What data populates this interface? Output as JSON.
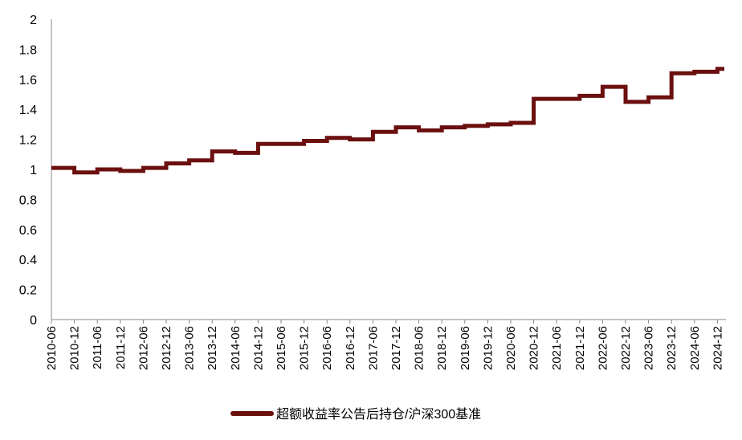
{
  "chart_data": {
    "type": "line",
    "title": "",
    "xlabel": "",
    "ylabel": "",
    "ylim": [
      0,
      2
    ],
    "y_ticks": [
      "0",
      "0.2",
      "0.4",
      "0.6",
      "0.8",
      "1",
      "1.2",
      "1.4",
      "1.6",
      "1.8",
      "2"
    ],
    "x_ticks": [
      "2010-06",
      "2010-12",
      "2011-06",
      "2011-12",
      "2012-06",
      "2012-12",
      "2013-06",
      "2013-12",
      "2014-06",
      "2014-12",
      "2015-06",
      "2015-12",
      "2016-06",
      "2016-12",
      "2017-06",
      "2017-12",
      "2018-06",
      "2018-12",
      "2019-06",
      "2019-12",
      "2020-06",
      "2020-12",
      "2021-06",
      "2021-12",
      "2022-06",
      "2022-12",
      "2023-06",
      "2023-12",
      "2024-06",
      "2024-12"
    ],
    "grid": false,
    "legend_position": "bottom",
    "series": [
      {
        "name": "超额收益率公告后持仓/沪深300基准",
        "color": "#6b0f0f",
        "x": [
          "2010-06",
          "2010-12",
          "2010-12",
          "2011-06",
          "2011-06",
          "2011-12",
          "2011-12",
          "2012-06",
          "2012-06",
          "2012-12",
          "2012-12",
          "2013-06",
          "2013-06",
          "2013-12",
          "2013-12",
          "2014-06",
          "2014-06",
          "2014-12",
          "2014-12",
          "2015-06",
          "2015-06",
          "2015-12",
          "2015-12",
          "2016-06",
          "2016-06",
          "2016-12",
          "2016-12",
          "2017-06",
          "2017-06",
          "2017-12",
          "2017-12",
          "2018-06",
          "2018-06",
          "2018-12",
          "2018-12",
          "2019-06",
          "2019-06",
          "2019-12",
          "2019-12",
          "2020-06",
          "2020-06",
          "2020-12",
          "2020-12",
          "2021-06",
          "2021-06",
          "2021-12",
          "2021-12",
          "2022-06",
          "2022-06",
          "2022-12",
          "2022-12",
          "2023-06",
          "2023-06",
          "2023-12",
          "2023-12",
          "2024-06",
          "2024-06",
          "2024-12",
          "2024-12",
          "2025-06"
        ],
        "values": [
          1.01,
          1.01,
          0.98,
          0.98,
          1.0,
          1.0,
          0.99,
          0.99,
          1.01,
          1.01,
          1.04,
          1.04,
          1.06,
          1.06,
          1.12,
          1.12,
          1.11,
          1.11,
          1.17,
          1.17,
          1.17,
          1.17,
          1.19,
          1.19,
          1.21,
          1.21,
          1.2,
          1.2,
          1.25,
          1.25,
          1.28,
          1.28,
          1.26,
          1.26,
          1.28,
          1.28,
          1.29,
          1.29,
          1.3,
          1.3,
          1.31,
          1.31,
          1.47,
          1.47,
          1.47,
          1.47,
          1.49,
          1.49,
          1.55,
          1.55,
          1.45,
          1.45,
          1.48,
          1.48,
          1.64,
          1.64,
          1.65,
          1.65,
          1.67,
          1.67
        ]
      }
    ]
  }
}
